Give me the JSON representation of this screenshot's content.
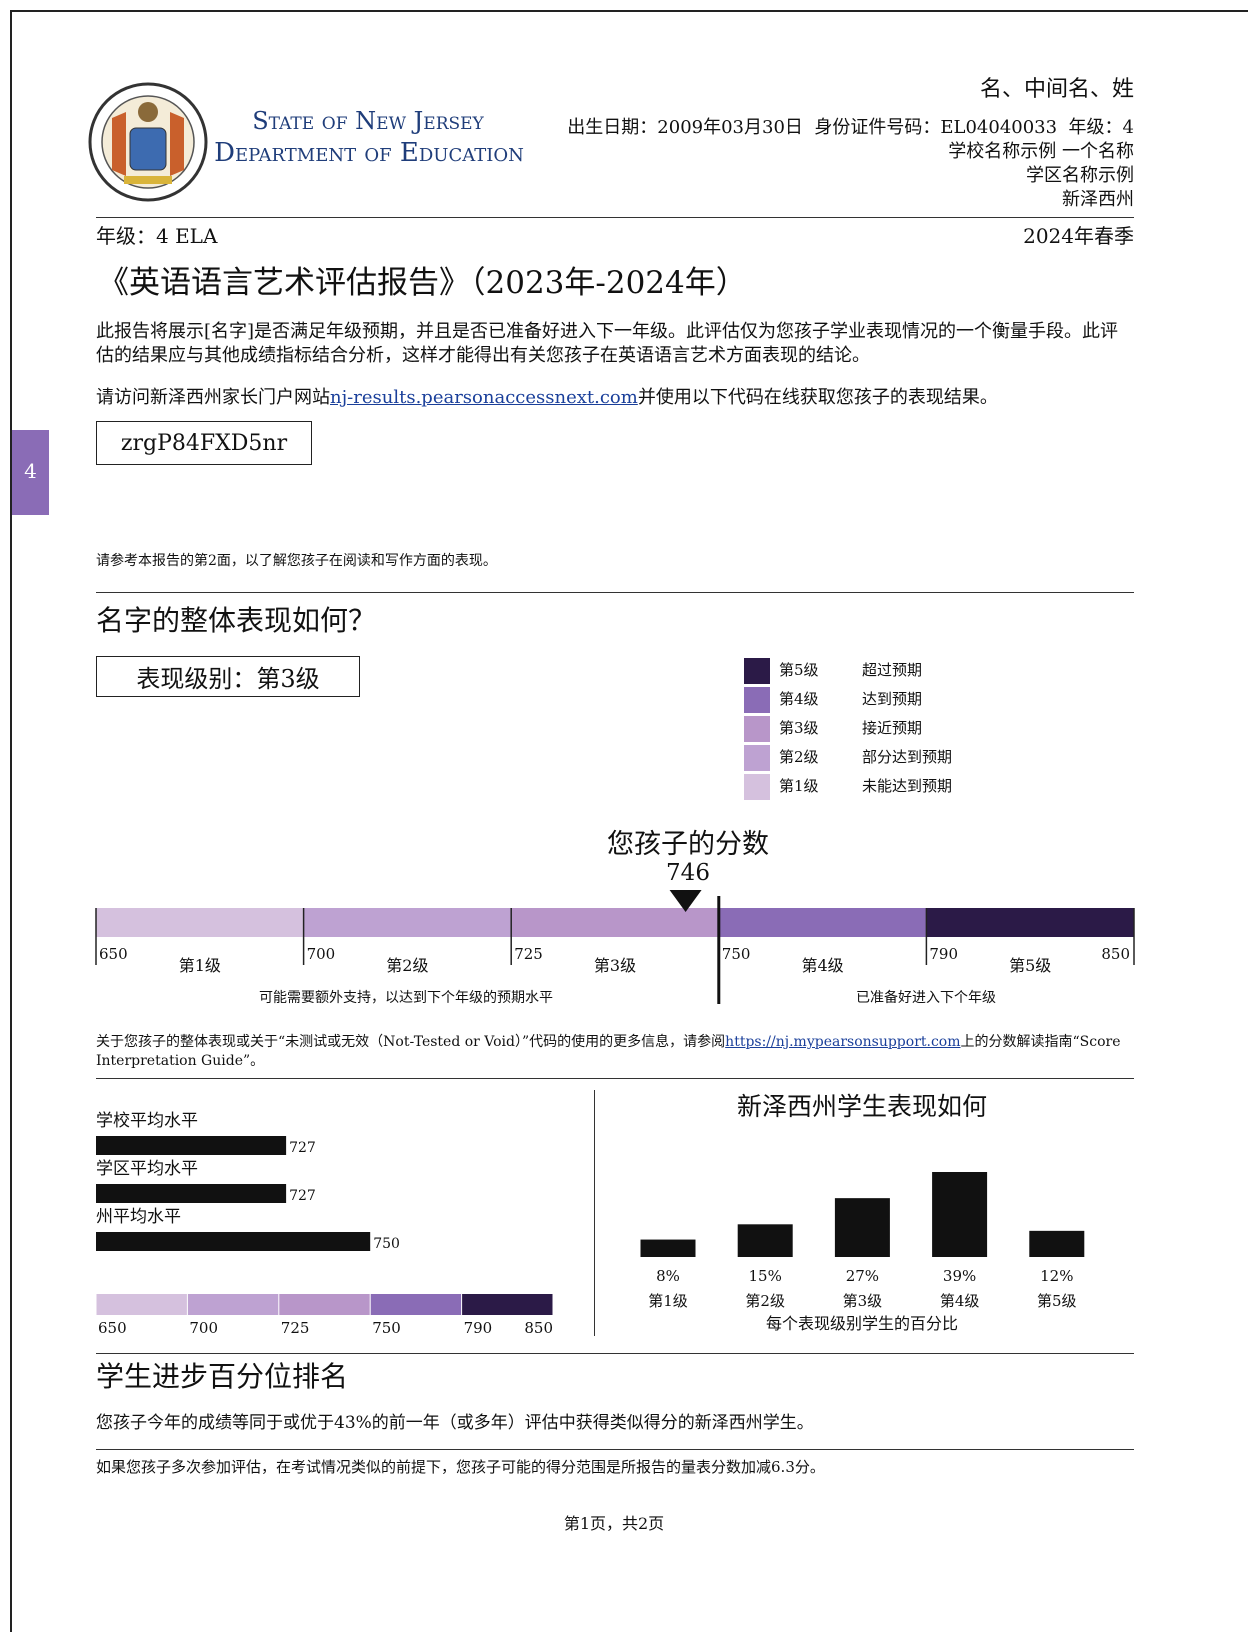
{
  "header": {
    "agency_line1": "State of New Jersey",
    "agency_line2": "Department of Education",
    "student_name": "名、中间名、姓",
    "birth_label": "出生日期：",
    "birth_date": "2009年03月30日",
    "id_label": "身份证件号码：",
    "id": "EL04040033",
    "grade_label": "年级：",
    "grade": "4",
    "school": "学校名称示例 一个名称",
    "district": "学区名称示例",
    "state": "新泽西州"
  },
  "subheader": {
    "grade_subject": "年级：4 ELA",
    "season": "2024年春季"
  },
  "report_title": "《英语语言艺术评估报告》（2023年-2024年）",
  "intro": "此报告将展示[名字]是否满足年级预期，并且是否已准备好进入下一年级。此评估仅为您孩子学业表现情况的一个衡量手段。此评估的结果应与其他成绩指标结合分析，这样才能得出有关您孩子在英语语言艺术方面表现的结论。",
  "portal": {
    "before": "请访问新泽西州家长门户网站",
    "link": "nj-results.pearsonaccessnext.com",
    "after": "并使用以下代码在线获取您孩子的表现结果。"
  },
  "access_code": "zrgP84FXD5nr",
  "side_tab": "4",
  "page2_note": "请参考本报告的第2面，以了解您孩子在阅读和写作方面的表现。",
  "levels": [
    {
      "name": "第1级",
      "desc": "未能达到预期",
      "color": "#d5c1de"
    },
    {
      "name": "第2级",
      "desc": "部分达到预期",
      "color": "#bea2d2"
    },
    {
      "name": "第3级",
      "desc": "接近预期",
      "color": "#b896c9"
    },
    {
      "name": "第4级",
      "desc": "达到预期",
      "color": "#8a6cb6"
    },
    {
      "name": "第5级",
      "desc": "超过预期",
      "color": "#2b1a47"
    }
  ],
  "scale": {
    "xlim": [
      650,
      850
    ],
    "xticks": [
      650,
      700,
      725,
      750,
      790,
      850
    ]
  },
  "overall": {
    "heading": "名字的整体表现如何？",
    "level_box": "表现级别：第3级",
    "score_label": "您孩子的分数",
    "score": 746,
    "ready_cut": 750,
    "left_note": "可能需要额外支持，以达到下个年级的预期水平",
    "right_note": "已准备好进入下个年级"
  },
  "interpretation": {
    "before": "关于您孩子的整体表现或关于“未测试或无效（Not-Tested or Void）”代码的使用的更多信息，请参阅",
    "link": "https://nj.mypearsonsupport.com",
    "after": "上的分数解读指南“Score Interpretation Guide”。"
  },
  "averages": {
    "type": "bar",
    "categories": [
      "学校平均水平",
      "学区平均水平",
      "州平均水平"
    ],
    "values": [
      727,
      727,
      750
    ],
    "color": "#111111"
  },
  "distribution": {
    "type": "bar",
    "title": "新泽西州学生表现如何",
    "values": [
      8,
      15,
      27,
      39,
      12
    ],
    "value_labels": [
      "8%",
      "15%",
      "27%",
      "39%",
      "12%"
    ],
    "xlabel": "每个表现级别学生的百分比",
    "color": "#111111"
  },
  "percentile": {
    "heading": "学生进步百分位排名",
    "text": "您孩子今年的成绩等同于或优于43%的前一年（或多年）评估中获得类似得分的新泽西州学生。"
  },
  "range_note": "如果您孩子多次参加评估，在考试情况类似的前提下，您孩子可能的得分范围是所报告的量表分数加减6.3分。",
  "footer": "第1页，共2页"
}
